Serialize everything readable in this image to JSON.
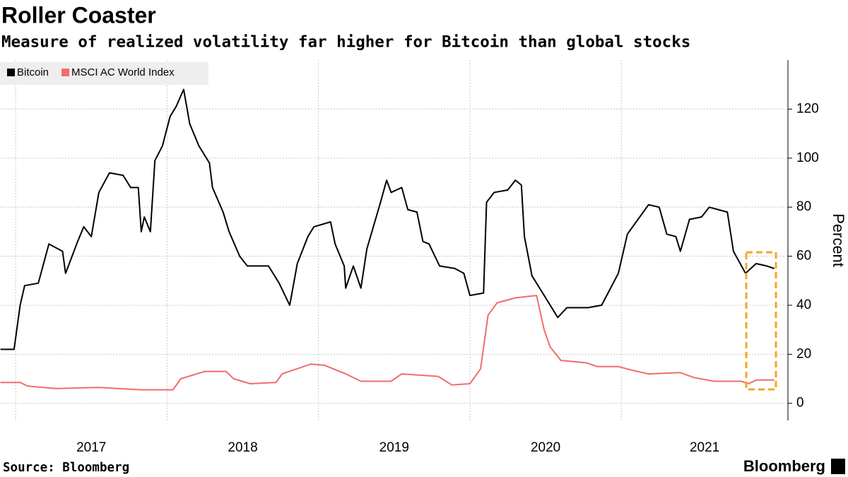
{
  "chart_data": {
    "type": "line",
    "title": "Roller Coaster",
    "subtitle": "Measure of realized volatility far higher for Bitcoin than global stocks",
    "y_label": "Percent",
    "source": "Source: Bloomberg",
    "brand": "Bloomberg",
    "legend": "top-left",
    "grid": true,
    "xlim": [
      2016.897,
      2022.1
    ],
    "xticks": [
      2017,
      2018,
      2019,
      2020,
      2021
    ],
    "ylim": [
      -7,
      140
    ],
    "yticks": [
      0,
      20,
      40,
      60,
      80,
      100,
      120
    ],
    "series": [
      {
        "name": "Bitcoin",
        "color": "#000000",
        "x": [
          2016.9,
          2016.99,
          2017.03,
          2017.06,
          2017.15,
          2017.22,
          2017.31,
          2017.33,
          2017.41,
          2017.45,
          2017.5,
          2017.55,
          2017.62,
          2017.71,
          2017.76,
          2017.81,
          2017.83,
          2017.85,
          2017.89,
          2017.92,
          2017.97,
          2018.02,
          2018.06,
          2018.11,
          2018.15,
          2018.21,
          2018.28,
          2018.3,
          2018.37,
          2018.41,
          2018.48,
          2018.53,
          2018.6,
          2018.67,
          2018.74,
          2018.81,
          2018.86,
          2018.93,
          2018.97,
          2019.08,
          2019.11,
          2019.17,
          2019.18,
          2019.23,
          2019.28,
          2019.32,
          2019.41,
          2019.45,
          2019.48,
          2019.55,
          2019.59,
          2019.65,
          2019.69,
          2019.73,
          2019.8,
          2019.9,
          2019.96,
          2020.0,
          2020.09,
          2020.11,
          2020.16,
          2020.25,
          2020.3,
          2020.34,
          2020.36,
          2020.41,
          2020.51,
          2020.58,
          2020.64,
          2020.78,
          2020.87,
          2020.98,
          2021.04,
          2021.11,
          2021.18,
          2021.25,
          2021.3,
          2021.36,
          2021.39,
          2021.45,
          2021.53,
          2021.58,
          2021.7,
          2021.74,
          2021.82,
          2021.89,
          2021.96,
          2022.01
        ],
        "values": [
          22,
          22,
          40,
          48,
          49,
          65,
          62,
          53,
          66,
          72,
          68,
          86,
          94,
          93,
          88,
          88,
          70,
          76,
          70,
          99,
          105,
          117,
          121,
          128,
          114,
          105,
          98,
          88,
          78,
          70,
          60,
          56,
          56,
          56,
          49,
          40,
          57,
          68,
          72,
          74,
          65,
          56,
          47,
          56,
          47,
          63,
          82,
          91,
          86,
          88,
          79,
          78,
          66,
          65,
          56,
          55,
          53,
          44,
          45,
          82,
          86,
          87,
          91,
          89,
          68,
          52,
          42,
          35,
          39,
          39,
          40,
          53,
          69,
          75,
          81,
          80,
          69,
          68,
          62,
          75,
          76,
          80,
          78,
          62,
          53,
          57,
          56,
          55
        ]
      },
      {
        "name": "MSCI AC World Index",
        "color": "#f46b6b",
        "x": [
          2016.9,
          2017.03,
          2017.08,
          2017.27,
          2017.55,
          2017.83,
          2018.04,
          2018.09,
          2018.25,
          2018.39,
          2018.44,
          2018.55,
          2018.72,
          2018.76,
          2018.95,
          2019.04,
          2019.18,
          2019.28,
          2019.48,
          2019.55,
          2019.79,
          2019.88,
          2020.0,
          2020.07,
          2020.12,
          2020.18,
          2020.3,
          2020.44,
          2020.49,
          2020.53,
          2020.6,
          2020.77,
          2020.84,
          2020.98,
          2021.07,
          2021.18,
          2021.39,
          2021.48,
          2021.61,
          2021.79,
          2021.84,
          2021.89,
          2022.01
        ],
        "values": [
          8.5,
          8.5,
          7,
          6,
          6.5,
          5.5,
          5.5,
          10,
          13,
          13,
          10,
          8,
          8.5,
          12,
          16,
          15.5,
          12,
          9,
          9,
          12,
          11,
          7.5,
          8,
          14,
          36,
          41,
          43,
          44,
          30,
          23,
          17.5,
          16.5,
          15,
          15,
          13.5,
          12,
          12.5,
          10.5,
          9,
          9,
          8,
          9.5,
          9.5
        ]
      }
    ]
  }
}
